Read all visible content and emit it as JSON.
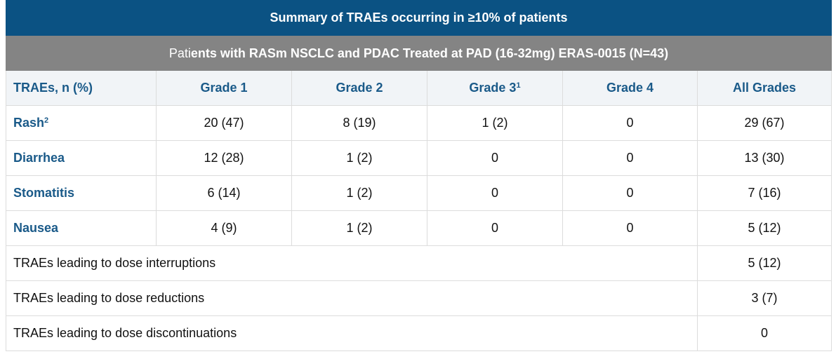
{
  "title": "Summary of TRAEs occurring in ≥10% of patients",
  "subtitle": {
    "prefix": "Pati",
    "main": "ents with RASm NSCLC and PDAC Treated at PAD (16-32mg) ERAS-0015 (N=43)"
  },
  "columns": {
    "term": "TRAEs, n (%)",
    "g1": "Grade 1",
    "g2": "Grade 2",
    "g3": "Grade 3",
    "g3_sup": "1",
    "g4": "Grade 4",
    "all": "All Grades"
  },
  "rows": [
    {
      "term": "Rash",
      "sup": "2",
      "g1": "20 (47)",
      "g2": "8 (19)",
      "g3": "1 (2)",
      "g4": "0",
      "all": "29 (67)"
    },
    {
      "term": "Diarrhea",
      "g1": "12 (28)",
      "g2": "1 (2)",
      "g3": "0",
      "g4": "0",
      "all": "13 (30)"
    },
    {
      "term": "Stomatitis",
      "g1": "6 (14)",
      "g2": "1 (2)",
      "g3": "0",
      "g4": "0",
      "all": "7 (16)"
    },
    {
      "term": "Nausea",
      "g1": "4 (9)",
      "g2": "1 (2)",
      "g3": "0",
      "g4": "0",
      "all": "5 (12)"
    }
  ],
  "summary_rows": [
    {
      "label": "TRAEs leading to dose interruptions",
      "all": "5 (12)"
    },
    {
      "label": "TRAEs leading to dose reductions",
      "all": "3 (7)"
    },
    {
      "label": "TRAEs leading to dose discontinuations",
      "all": "0"
    }
  ],
  "colors": {
    "title_bg": "#0b5283",
    "subtitle_bg": "#848484",
    "header_bg": "#f1f4f7",
    "accent_text": "#1a5a89"
  }
}
